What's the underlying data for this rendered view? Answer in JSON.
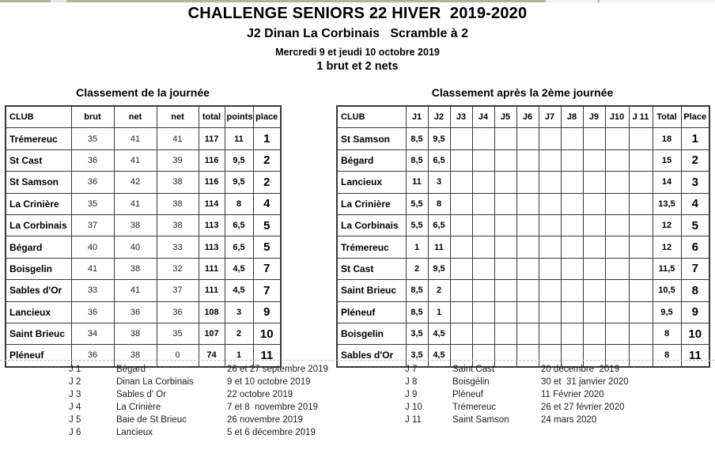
{
  "header": {
    "title": "CHALLENGE SENIORS 22 HIVER  2019-2020",
    "subtitle": "J2 Dinan La Corbinais   Scramble à 2",
    "date_line": "Mercredi 9 et jeudi 10 octobre 2019",
    "format_line": "1 brut et 2 nets"
  },
  "colors": {
    "grid_border": "#383838",
    "text": "#000000",
    "background": "#ffffff"
  },
  "day_table": {
    "title": "Classement de la journée",
    "header": [
      "CLUB",
      "brut",
      "net",
      "net",
      "total",
      "points",
      "place"
    ],
    "rows": [
      [
        "Trémereuc",
        "35",
        "41",
        "41",
        "117",
        "11",
        "1"
      ],
      [
        "St Cast",
        "36",
        "41",
        "39",
        "116",
        "9,5",
        "2"
      ],
      [
        "St Samson",
        "36",
        "42",
        "38",
        "116",
        "9,5",
        "2"
      ],
      [
        "La Crinière",
        "35",
        "41",
        "38",
        "114",
        "8",
        "4"
      ],
      [
        "La Corbinais",
        "37",
        "38",
        "38",
        "113",
        "6,5",
        "5"
      ],
      [
        "Bégard",
        "40",
        "40",
        "33",
        "113",
        "6,5",
        "5"
      ],
      [
        "Boisgelin",
        "41",
        "38",
        "32",
        "111",
        "4,5",
        "7"
      ],
      [
        "Sables d'Or",
        "33",
        "41",
        "37",
        "111",
        "4,5",
        "7"
      ],
      [
        "Lancieux",
        "36",
        "36",
        "36",
        "108",
        "3",
        "9"
      ],
      [
        "Saint Brieuc",
        "34",
        "38",
        "35",
        "107",
        "2",
        "10"
      ],
      [
        "Pléneuf",
        "36",
        "38",
        "0",
        "74",
        "1",
        "11"
      ]
    ]
  },
  "season_table": {
    "title": "Classement après la 2ème journée",
    "header": [
      "CLUB",
      "J1",
      "J2",
      "J3",
      "J4",
      "J5",
      "J6",
      "J7",
      "J8",
      "J9",
      "J10",
      "J 11",
      "Total",
      "Place"
    ],
    "rows": [
      [
        "St Samson",
        "8,5",
        "9,5",
        "",
        "",
        "",
        "",
        "",
        "",
        "",
        "",
        "",
        "18",
        "1"
      ],
      [
        "Bégard",
        "8,5",
        "6,5",
        "",
        "",
        "",
        "",
        "",
        "",
        "",
        "",
        "",
        "15",
        "2"
      ],
      [
        "Lancieux",
        "11",
        "3",
        "",
        "",
        "",
        "",
        "",
        "",
        "",
        "",
        "",
        "14",
        "3"
      ],
      [
        "La Crinière",
        "5,5",
        "8",
        "",
        "",
        "",
        "",
        "",
        "",
        "",
        "",
        "",
        "13,5",
        "4"
      ],
      [
        "La Corbinais",
        "5,5",
        "6,5",
        "",
        "",
        "",
        "",
        "",
        "",
        "",
        "",
        "",
        "12",
        "5"
      ],
      [
        "Trémereuc",
        "1",
        "11",
        "",
        "",
        "",
        "",
        "",
        "",
        "",
        "",
        "",
        "12",
        "6"
      ],
      [
        "St Cast",
        "2",
        "9,5",
        "",
        "",
        "",
        "",
        "",
        "",
        "",
        "",
        "",
        "11,5",
        "7"
      ],
      [
        "Saint Brieuc",
        "8,5",
        "2",
        "",
        "",
        "",
        "",
        "",
        "",
        "",
        "",
        "",
        "10,5",
        "8"
      ],
      [
        "Pléneuf",
        "8,5",
        "1",
        "",
        "",
        "",
        "",
        "",
        "",
        "",
        "",
        "",
        "9,5",
        "9"
      ],
      [
        "Boisgelin",
        "3,5",
        "4,5",
        "",
        "",
        "",
        "",
        "",
        "",
        "",
        "",
        "",
        "8",
        "10"
      ],
      [
        "Sables d'Or",
        "3,5",
        "4,5",
        "",
        "",
        "",
        "",
        "",
        "",
        "",
        "",
        "",
        "8",
        "11"
      ]
    ]
  },
  "legend": {
    "left": [
      {
        "j": "J 1",
        "club": "Bégard",
        "date": "26 et 27 septembre 2019"
      },
      {
        "j": "J 2",
        "club": "Dinan La Corbinais",
        "date": "9 et 10 octobre 2019"
      },
      {
        "j": "J 3",
        "club": "Sables d' Or",
        "date": "22 octobre 2019"
      },
      {
        "j": "J 4",
        "club": "La Crinière",
        "date": "7 et 8  novembre 2019"
      },
      {
        "j": "J 5",
        "club": "Baie de St Brieuc",
        "date": "26 novembre 2019"
      },
      {
        "j": "J 6",
        "club": "Lancieux",
        "date": "5 et 6 décembre 2019"
      }
    ],
    "right": [
      {
        "j": "J 7",
        "club": "Saint Cast",
        "date": "20 décembre  2019"
      },
      {
        "j": "J 8",
        "club": "Boisgélin",
        "date": "30 et  31 janvier 2020"
      },
      {
        "j": "J 9",
        "club": "Pléneuf",
        "date": "11 Février 2020"
      },
      {
        "j": "J 10",
        "club": "Trémereuc",
        "date": "26 et 27 février 2020"
      },
      {
        "j": "J 11",
        "club": "Saint Samson",
        "date": "24 mars 2020"
      }
    ]
  }
}
